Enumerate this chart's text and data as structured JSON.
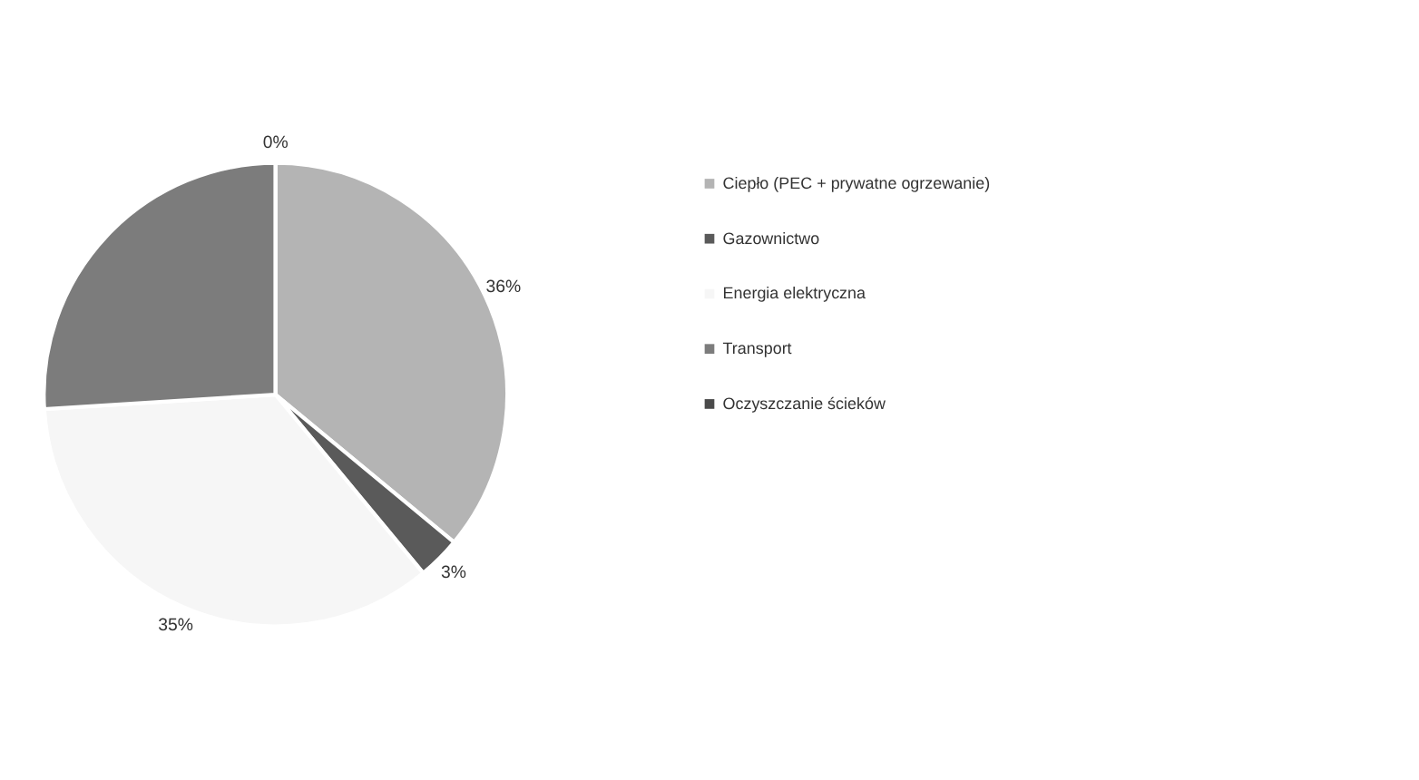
{
  "chart_data": {
    "type": "pie",
    "categories": [
      "Ciepło (PEC + prywatne ogrzewanie)",
      "Gazownictwo",
      "Energia elektryczna",
      "Transport",
      "Oczyszczanie ścieków"
    ],
    "values": [
      36,
      3,
      35,
      26,
      0
    ],
    "colors": [
      "#b4b4b4",
      "#5a5a5a",
      "#f6f6f6",
      "#7c7c7c",
      "#4a4a4a"
    ],
    "value_labels": [
      "36%",
      "3%",
      "35%",
      null,
      "0%"
    ],
    "legend": "right"
  }
}
